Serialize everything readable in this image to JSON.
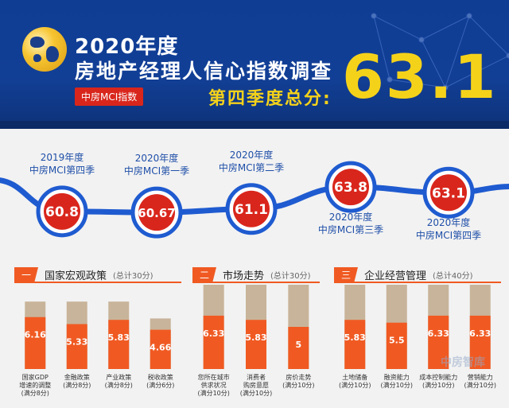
{
  "header": {
    "title_line1": "2020年度",
    "title_line2": "房地产经理人信心指数调查",
    "tag": "中房MCI指数",
    "quarter_label": "第四季度总分:",
    "total_score": "63.1"
  },
  "colors": {
    "header_bg": "#123f96",
    "accent_yellow": "#f5d21a",
    "bar_orange": "#f05a22",
    "bar_tan": "#c8b49a",
    "circle_red": "#d9261c",
    "curve_blue": "#1f5bd0"
  },
  "chart_data": [
    {
      "type": "line",
      "x": [
        "2019年度 中房MCI第四季",
        "2020年度 中房MCI第一季",
        "2020年度 中房MCI第二季",
        "2020年度 中房MCI第三季",
        "2020年度 中房MCI第四季"
      ],
      "values": [
        60.8,
        60.67,
        61.1,
        63.8,
        63.1
      ],
      "value_labels": [
        "60.8",
        "60.67",
        "61.1",
        "63.8",
        "63.1"
      ],
      "label_year": [
        "2019年度",
        "2020年度",
        "2020年度",
        "2020年度",
        "2020年度"
      ],
      "label_quarter": [
        "中房MCI第四季",
        "中房MCI第一季",
        "中房MCI第二季",
        "中房MCI第三季",
        "中房MCI第四季"
      ]
    },
    {
      "type": "bar",
      "section_number": "一",
      "title": "国家宏观政策",
      "total": "(总计30分)",
      "categories": [
        "国家GDP\n增速的调整\n(满分8分)",
        "金融政策\n(满分8分)",
        "产业政策\n(满分8分)",
        "税收政策\n(满分6分)"
      ],
      "max": [
        8,
        8,
        8,
        6
      ],
      "values": [
        6.16,
        5.33,
        5.83,
        4.66
      ],
      "value_labels": [
        "6.16",
        "5.33",
        "5.83",
        "4.66"
      ]
    },
    {
      "type": "bar",
      "section_number": "二",
      "title": "市场走势",
      "total": "(总计30分)",
      "categories": [
        "您所在城市\n供求状况\n(满分10分)",
        "消费者\n购房意愿\n(满分10分)",
        "房价走势\n(满分10分)"
      ],
      "max": [
        10,
        10,
        10
      ],
      "values": [
        6.33,
        5.83,
        5
      ],
      "value_labels": [
        "6.33",
        "5.83",
        "5"
      ]
    },
    {
      "type": "bar",
      "section_number": "三",
      "title": "企业经营管理",
      "total": "(总计40分)",
      "categories": [
        "土地储备\n(满分10分)",
        "融资能力\n(满分10分)",
        "成本控制能力\n(满分10分)",
        "营销能力\n(满分10分)"
      ],
      "max": [
        10,
        10,
        10,
        10
      ],
      "values": [
        5.83,
        5.5,
        6.33,
        6.33
      ],
      "value_labels": [
        "5.83",
        "5.5",
        "6.33",
        "6.33"
      ]
    }
  ],
  "watermark": "中房智库"
}
